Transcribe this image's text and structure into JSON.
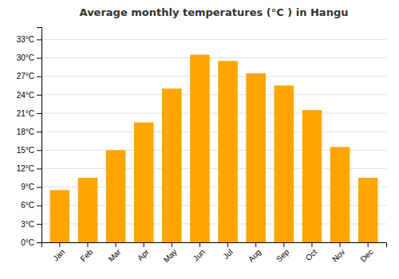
{
  "chart_data": {
    "type": "bar",
    "title": "Average monthly temperatures (°C ) in Hangu",
    "categories": [
      "Jan",
      "Feb",
      "Mar",
      "Apr",
      "May",
      "Jun",
      "Jul",
      "Aug",
      "Sep",
      "Oct",
      "Nov",
      "Dec"
    ],
    "values": [
      8.5,
      10.5,
      15.0,
      19.5,
      25.0,
      30.5,
      29.5,
      27.5,
      25.5,
      21.5,
      15.5,
      10.5
    ],
    "color": "#FFA500",
    "ylim": [
      0,
      35
    ],
    "yticks": [
      {
        "value": 0,
        "label": "0°C"
      },
      {
        "value": 3,
        "label": "3°C"
      },
      {
        "value": 6,
        "label": "6°C"
      },
      {
        "value": 9,
        "label": "9°C"
      },
      {
        "value": 12,
        "label": "12°C"
      },
      {
        "value": 15,
        "label": "15°C"
      },
      {
        "value": 18,
        "label": "18°C"
      },
      {
        "value": 21,
        "label": "21°C"
      },
      {
        "value": 24,
        "label": "24°C"
      },
      {
        "value": 27,
        "label": "27°C"
      },
      {
        "value": 30,
        "label": "30°C"
      },
      {
        "value": 33,
        "label": "33°C"
      }
    ],
    "grid": true
  }
}
